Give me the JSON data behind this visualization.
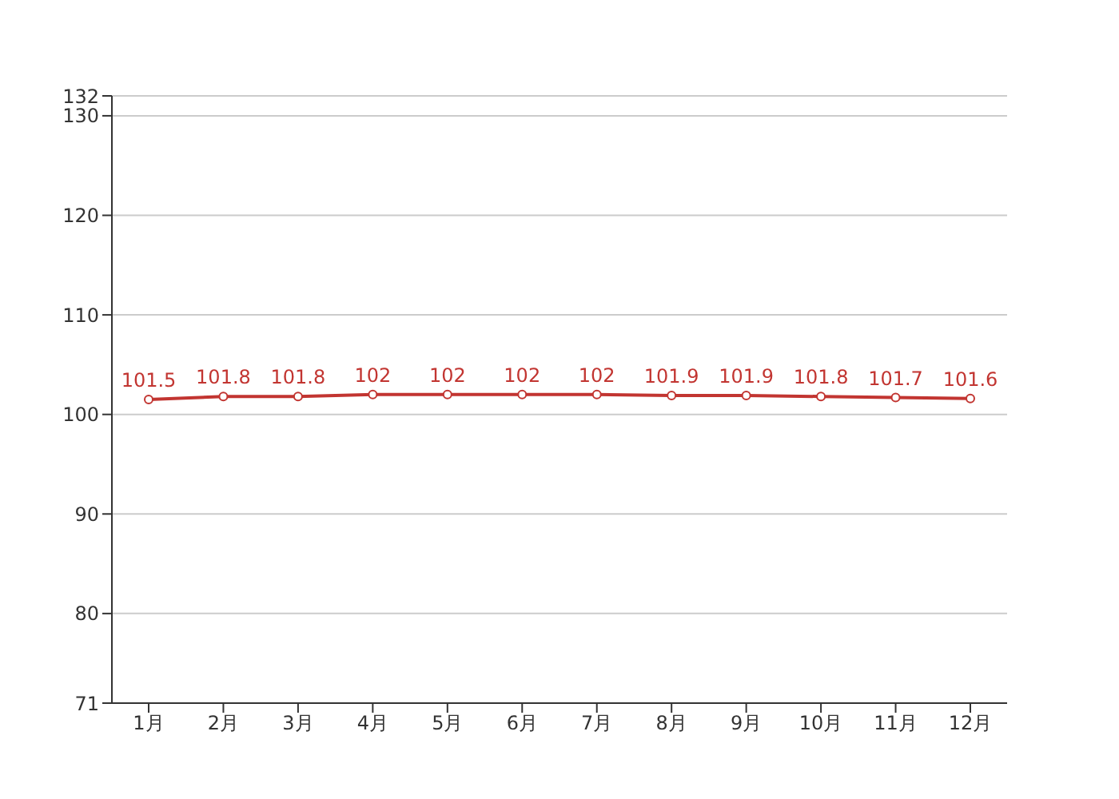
{
  "chart_data": {
    "type": "line",
    "categories": [
      "1月",
      "2月",
      "3月",
      "4月",
      "5月",
      "6月",
      "7月",
      "8月",
      "9月",
      "10月",
      "11月",
      "12月"
    ],
    "series": [
      {
        "color": "#c23531",
        "values": [
          101.5,
          101.8,
          101.8,
          102,
          102,
          102,
          102,
          101.9,
          101.9,
          101.8,
          101.7,
          101.6
        ]
      }
    ],
    "ylim": [
      71,
      132
    ],
    "yticks": [
      71,
      80,
      90,
      100,
      110,
      120,
      130,
      132
    ],
    "grid": "y",
    "marker": "circle",
    "line_style": "solid",
    "data_labels": true,
    "legend": false
  }
}
